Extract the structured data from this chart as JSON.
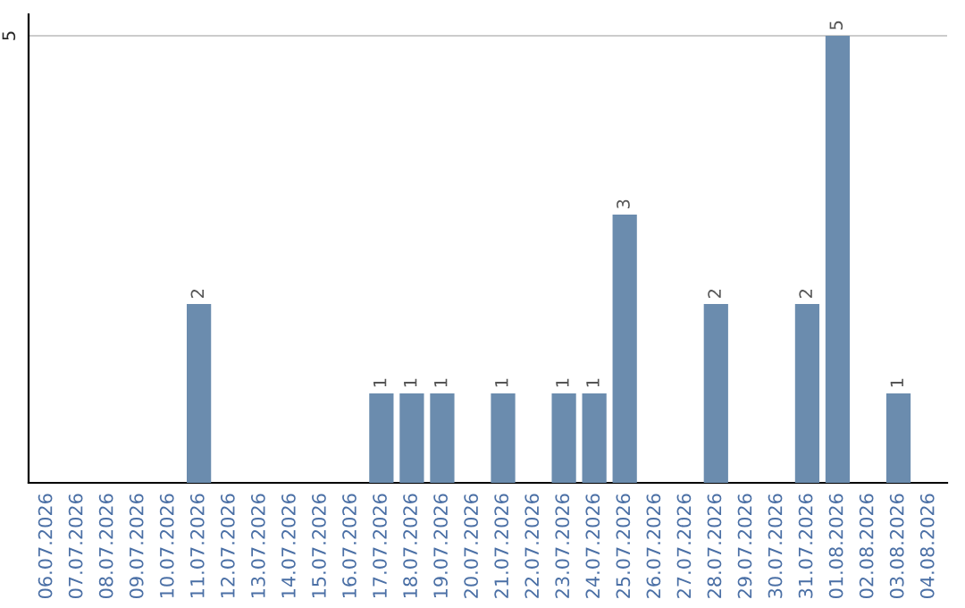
{
  "chart_data": {
    "type": "bar",
    "categories": [
      "06.07.2026",
      "07.07.2026",
      "08.07.2026",
      "09.07.2026",
      "10.07.2026",
      "11.07.2026",
      "12.07.2026",
      "13.07.2026",
      "14.07.2026",
      "15.07.2026",
      "16.07.2026",
      "17.07.2026",
      "18.07.2026",
      "19.07.2026",
      "20.07.2026",
      "21.07.2026",
      "22.07.2026",
      "23.07.2026",
      "24.07.2026",
      "25.07.2026",
      "26.07.2026",
      "27.07.2026",
      "28.07.2026",
      "29.07.2026",
      "30.07.2026",
      "31.07.2026",
      "01.08.2026",
      "02.08.2026",
      "03.08.2026",
      "04.08.2026"
    ],
    "values": [
      0,
      0,
      0,
      0,
      0,
      2,
      0,
      0,
      0,
      0,
      0,
      1,
      1,
      1,
      0,
      1,
      0,
      1,
      1,
      3,
      0,
      0,
      2,
      0,
      0,
      2,
      5,
      0,
      1,
      0
    ],
    "value_labels": [
      null,
      null,
      null,
      null,
      null,
      "2",
      null,
      null,
      null,
      null,
      null,
      "1",
      "1",
      "1",
      null,
      "1",
      null,
      "1",
      "1",
      "3",
      null,
      null,
      "2",
      null,
      null,
      "2",
      "5",
      null,
      "1",
      null
    ],
    "color": "#6b8cae",
    "ylim": [
      0,
      5.24
    ],
    "yticks": [
      5
    ],
    "grid": "y"
  }
}
